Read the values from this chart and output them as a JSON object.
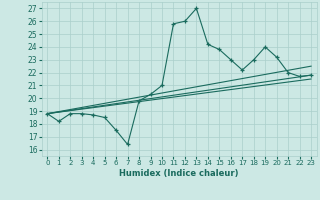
{
  "xlabel": "Humidex (Indice chaleur)",
  "xlim": [
    -0.5,
    23.5
  ],
  "ylim": [
    15.5,
    27.5
  ],
  "xticks": [
    0,
    1,
    2,
    3,
    4,
    5,
    6,
    7,
    8,
    9,
    10,
    11,
    12,
    13,
    14,
    15,
    16,
    17,
    18,
    19,
    20,
    21,
    22,
    23
  ],
  "yticks": [
    16,
    17,
    18,
    19,
    20,
    21,
    22,
    23,
    24,
    25,
    26,
    27
  ],
  "bg_color": "#cce8e4",
  "grid_color": "#aacfcb",
  "line_color": "#1a6b5e",
  "main_series": {
    "x": [
      0,
      1,
      2,
      3,
      4,
      5,
      6,
      7,
      8,
      9,
      10,
      11,
      12,
      13,
      14,
      15,
      16,
      17,
      18,
      19,
      20,
      21,
      22,
      23
    ],
    "y": [
      18.8,
      18.2,
      18.8,
      18.8,
      18.7,
      18.5,
      17.5,
      16.4,
      19.8,
      20.3,
      21.0,
      25.8,
      26.0,
      27.0,
      24.2,
      23.8,
      23.0,
      22.2,
      23.0,
      24.0,
      23.2,
      22.0,
      21.7,
      21.8
    ]
  },
  "trend_lines": [
    {
      "x": [
        0,
        23
      ],
      "y": [
        18.8,
        22.5
      ]
    },
    {
      "x": [
        0,
        23
      ],
      "y": [
        18.8,
        21.8
      ]
    },
    {
      "x": [
        0,
        23
      ],
      "y": [
        18.8,
        21.5
      ]
    }
  ]
}
